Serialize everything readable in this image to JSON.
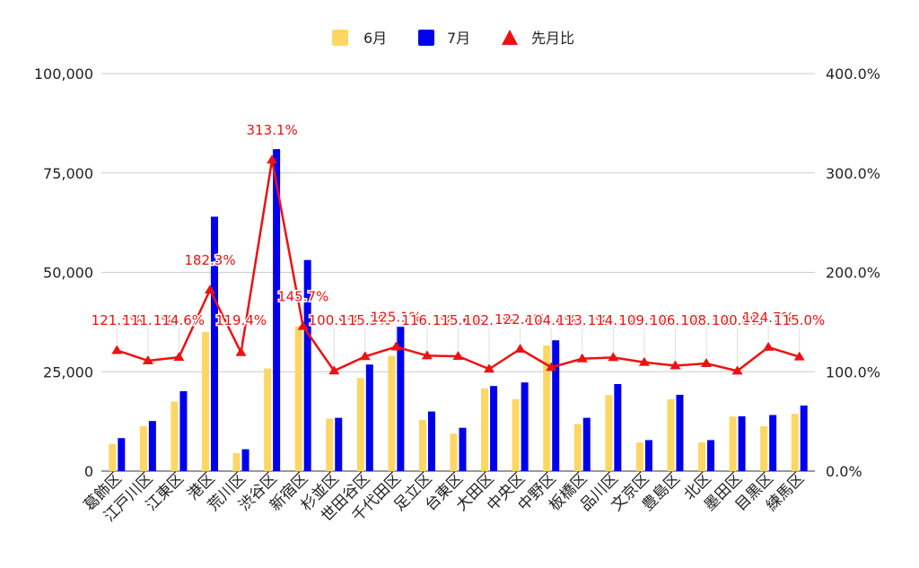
{
  "chart_data": {
    "type": "bar",
    "categories": [
      "葛飾区",
      "江戸川区",
      "江東区",
      "港区",
      "荒川区",
      "渋谷区",
      "新宿区",
      "杉並区",
      "世田谷区",
      "千代田区",
      "足立区",
      "台東区",
      "大田区",
      "中央区",
      "中野区",
      "板橋区",
      "品川区",
      "文京区",
      "豊島区",
      "北区",
      "墨田区",
      "目黒区",
      "練馬区"
    ],
    "series": [
      {
        "name": "6月",
        "type": "bar",
        "axis": "left",
        "color": "#fdd663",
        "values": [
          6800,
          11300,
          17500,
          35000,
          4500,
          25800,
          36400,
          13200,
          23400,
          29000,
          12900,
          9400,
          20800,
          18100,
          31600,
          11800,
          19100,
          7200,
          18100,
          7200,
          13700,
          11300,
          14400
        ]
      },
      {
        "name": "7月",
        "type": "bar",
        "axis": "left",
        "color": "#0000ee",
        "values": [
          8300,
          12600,
          20100,
          64000,
          5500,
          81000,
          53100,
          13400,
          26800,
          36300,
          15000,
          10900,
          21400,
          22300,
          32900,
          13400,
          21900,
          7800,
          19200,
          7800,
          13800,
          14100,
          16500
        ]
      },
      {
        "name": "先月比",
        "type": "line",
        "axis": "right",
        "color": "#ee1111",
        "values": [
          121.5,
          111.1,
          114.6,
          182.3,
          119.4,
          313.1,
          145.7,
          100.9,
          115.3,
          125.1,
          116.1,
          115.6,
          102.7,
          122.8,
          104.4,
          113.1,
          114.3,
          109.5,
          106.1,
          108.3,
          100.8,
          124.7,
          115.0
        ],
        "labels": [
          "121.5%",
          "111.1%",
          "114.6%",
          "182.3%",
          "119.4%",
          "313.1%",
          "145.7%",
          "100.9%",
          "115.3%",
          "125.1%",
          "116.1%",
          "115.6%",
          "102.7%",
          "122.8%",
          "104.4%",
          "113.1%",
          "114.3%",
          "109.5%",
          "106.1%",
          "108.3%",
          "100.8%",
          "124.7%",
          "115.0%"
        ]
      }
    ],
    "y_left": {
      "min": 0,
      "max": 100000,
      "ticks": [
        0,
        25000,
        50000,
        75000,
        100000
      ],
      "tick_labels": [
        "0",
        "25,000",
        "50,000",
        "75,000",
        "100,000"
      ]
    },
    "y_right": {
      "min": 0,
      "max": 400,
      "ticks": [
        0,
        100,
        200,
        300,
        400
      ],
      "tick_labels": [
        "0.0%",
        "100.0%",
        "200.0%",
        "300.0%",
        "400.0%"
      ]
    },
    "grid": true,
    "legend_position": "top"
  }
}
